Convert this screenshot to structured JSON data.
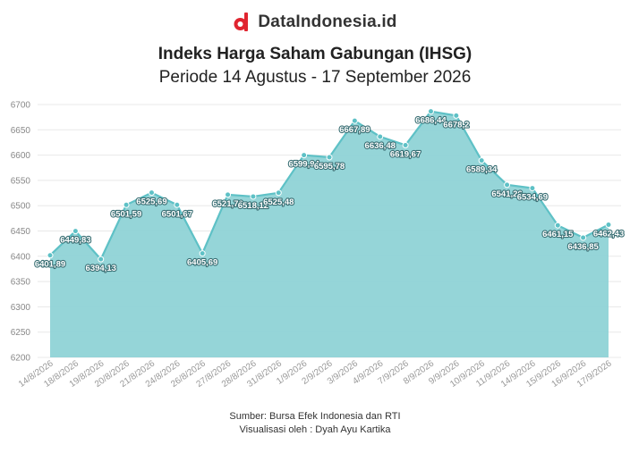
{
  "brand": {
    "name": "DataIndonesia.id",
    "logo_icon": "d-logo-icon",
    "logo_color": "#e0242f"
  },
  "chart_data": {
    "type": "area",
    "title": "Indeks Harga Saham Gabungan (IHSG)",
    "subtitle": "Periode 14 Agustus - 17 September 2026",
    "xlabel": "",
    "ylabel": "",
    "ylim": [
      6200,
      6700
    ],
    "yticks": [
      6200,
      6250,
      6300,
      6350,
      6400,
      6450,
      6500,
      6550,
      6600,
      6650,
      6700
    ],
    "grid": true,
    "color": "#5ec1c6",
    "fill": "#8fd3d6",
    "categories": [
      "14/8/2026",
      "18/8/2026",
      "19/8/2026",
      "20/8/2026",
      "21/8/2026",
      "24/8/2026",
      "26/8/2026",
      "27/8/2026",
      "28/8/2026",
      "31/8/2026",
      "1/9/2026",
      "2/9/2026",
      "3/9/2026",
      "4/9/2026",
      "7/9/2026",
      "8/9/2026",
      "9/9/2026",
      "10/9/2026",
      "11/9/2026",
      "14/9/2026",
      "15/9/2026",
      "16/9/2026",
      "17/9/2026"
    ],
    "values": [
      6401.89,
      6449.83,
      6394.13,
      6501.59,
      6525.69,
      6501.67,
      6405.69,
      6521.76,
      6518.12,
      6525.48,
      6599.94,
      6595.78,
      6667.89,
      6636.48,
      6619.67,
      6686.44,
      6678.2,
      6589.34,
      6541.26,
      6534.69,
      6461.15,
      6436.85,
      6462.43
    ],
    "labels": [
      "6401,89",
      "6449,83",
      "6394,13",
      "6501,59",
      "6525,69",
      "6501,67",
      "6405,69",
      "6521,76",
      "6518,12",
      "6525,48",
      "6599,94",
      "6595,78",
      "6667,89",
      "6636,48",
      "6619,67",
      "6686,44",
      "6678,2",
      "6589,34",
      "6541,26",
      "6534,69",
      "6461,15",
      "6436,85",
      "6462,43"
    ]
  },
  "footer": {
    "source": "Sumber: Bursa Efek Indonesia dan RTI",
    "credit": "Visualisasi oleh : Dyah Ayu Kartika"
  }
}
